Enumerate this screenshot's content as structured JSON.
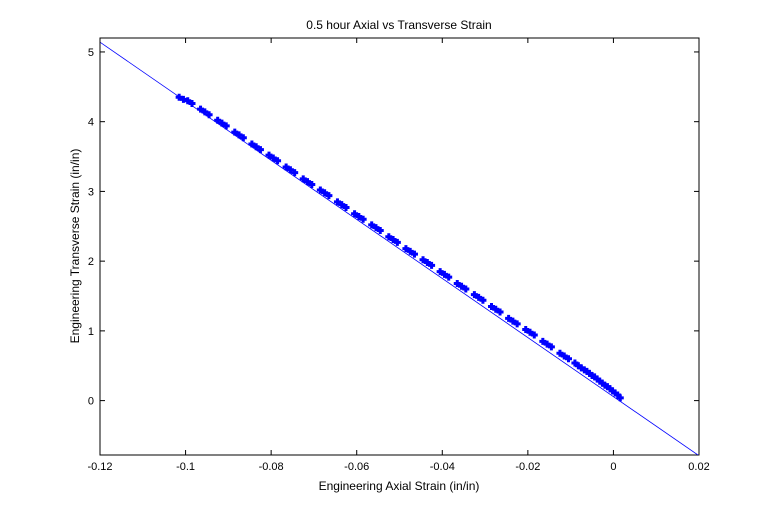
{
  "chart_data": {
    "type": "scatter",
    "title": "0.5 hour Axial vs Transverse Strain",
    "xlabel": "Engineering Axial Strain (in/in)",
    "ylabel": "Engineering Transverse Strain (in/in)",
    "xlim": [
      -0.12,
      0.02
    ],
    "ylim": [
      -0.78,
      5.2
    ],
    "x_ticks": [
      -0.12,
      -0.1,
      -0.08,
      -0.06,
      -0.04,
      -0.02,
      0,
      0.02
    ],
    "x_tick_labels": [
      "-0.12",
      "-0.1",
      "-0.08",
      "-0.06",
      "-0.04",
      "-0.02",
      "0",
      "0.02"
    ],
    "y_ticks": [
      0,
      1,
      2,
      3,
      4,
      5
    ],
    "y_tick_labels": [
      "0",
      "1",
      "2",
      "3",
      "4",
      "5"
    ],
    "grid": false,
    "legend": "none",
    "colors": {
      "series": "#0000ff",
      "axes": "#000000"
    },
    "series": [
      {
        "kind": "line",
        "x": [
          -0.12,
          0.02
        ],
        "y": [
          5.14,
          -0.79
        ]
      },
      {
        "kind": "markers",
        "marker": "+",
        "x": [
          -0.1015,
          -0.1005,
          -0.0995,
          -0.0985,
          -0.0965,
          -0.0955,
          -0.0945,
          -0.0925,
          -0.0915,
          -0.0905,
          -0.0885,
          -0.0875,
          -0.0865,
          -0.0845,
          -0.0835,
          -0.0825,
          -0.0805,
          -0.0795,
          -0.0785,
          -0.0765,
          -0.0755,
          -0.0745,
          -0.0725,
          -0.0715,
          -0.0705,
          -0.0685,
          -0.0675,
          -0.0665,
          -0.0645,
          -0.0635,
          -0.0625,
          -0.0605,
          -0.0595,
          -0.0585,
          -0.0565,
          -0.0555,
          -0.0545,
          -0.0525,
          -0.0515,
          -0.0505,
          -0.0485,
          -0.0475,
          -0.0465,
          -0.0445,
          -0.0435,
          -0.0425,
          -0.0405,
          -0.0395,
          -0.0385,
          -0.0365,
          -0.0355,
          -0.0345,
          -0.0325,
          -0.0315,
          -0.0305,
          -0.0285,
          -0.0275,
          -0.0265,
          -0.0245,
          -0.0235,
          -0.0225,
          -0.0205,
          -0.0195,
          -0.0185,
          -0.0165,
          -0.0155,
          -0.0145,
          -0.0125,
          -0.0115,
          -0.0105,
          -0.009,
          -0.0082,
          -0.0075,
          -0.0068,
          -0.0062,
          -0.0056,
          -0.005,
          -0.0044,
          -0.0038,
          -0.0032,
          -0.0026,
          -0.002,
          -0.0014,
          -0.0008,
          -0.0002,
          0.0004,
          0.001,
          0.0016
        ],
        "y": [
          4.35,
          4.32,
          4.3,
          4.26,
          4.18,
          4.14,
          4.1,
          4.02,
          3.98,
          3.94,
          3.85,
          3.81,
          3.77,
          3.68,
          3.64,
          3.6,
          3.52,
          3.48,
          3.44,
          3.35,
          3.31,
          3.27,
          3.18,
          3.14,
          3.1,
          3.02,
          2.98,
          2.94,
          2.85,
          2.81,
          2.77,
          2.68,
          2.64,
          2.6,
          2.52,
          2.48,
          2.44,
          2.35,
          2.31,
          2.27,
          2.18,
          2.14,
          2.1,
          2.02,
          1.98,
          1.94,
          1.85,
          1.81,
          1.77,
          1.68,
          1.64,
          1.6,
          1.52,
          1.48,
          1.44,
          1.35,
          1.31,
          1.27,
          1.18,
          1.14,
          1.1,
          1.02,
          0.98,
          0.94,
          0.85,
          0.81,
          0.77,
          0.68,
          0.64,
          0.6,
          0.54,
          0.5,
          0.47,
          0.44,
          0.42,
          0.39,
          0.36,
          0.34,
          0.31,
          0.28,
          0.25,
          0.22,
          0.2,
          0.17,
          0.14,
          0.11,
          0.08,
          0.04
        ]
      }
    ]
  }
}
